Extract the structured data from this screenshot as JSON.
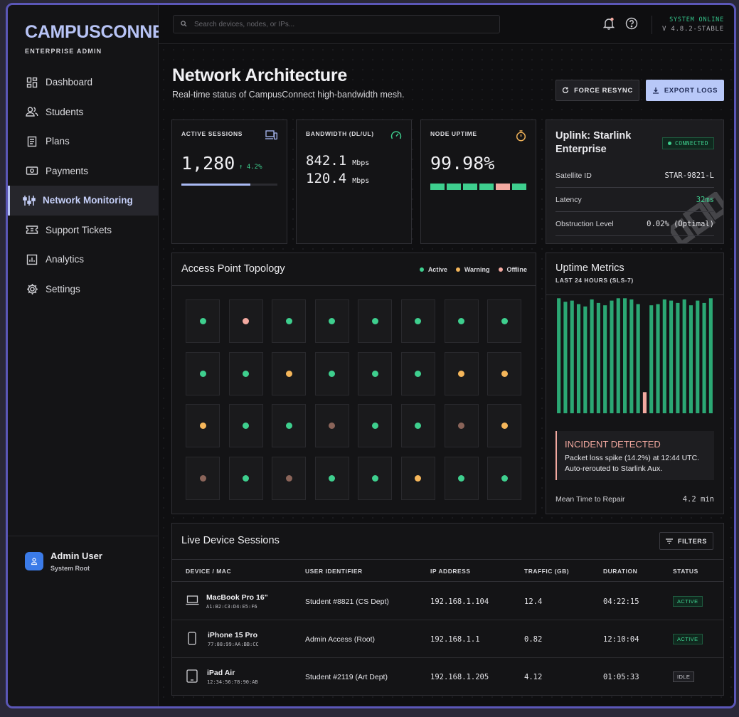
{
  "brand": {
    "title": "CAMPUSCONNECT",
    "subtitle": "ENTERPRISE ADMIN"
  },
  "sidebar": {
    "items": [
      {
        "label": "Dashboard",
        "icon": "dashboard-icon"
      },
      {
        "label": "Students",
        "icon": "users-icon"
      },
      {
        "label": "Plans",
        "icon": "plans-icon"
      },
      {
        "label": "Payments",
        "icon": "payments-icon"
      },
      {
        "label": "Network Monitoring",
        "icon": "network-icon",
        "active": true
      },
      {
        "label": "Support Tickets",
        "icon": "ticket-icon"
      },
      {
        "label": "Analytics",
        "icon": "analytics-icon"
      },
      {
        "label": "Settings",
        "icon": "gear-icon"
      }
    ],
    "user": {
      "name": "Admin User",
      "role": "System Root"
    }
  },
  "topbar": {
    "search_placeholder": "Search devices, nodes, or IPs...",
    "system_status": "SYSTEM ONLINE",
    "version": "V 4.8.2-STABLE"
  },
  "header": {
    "title": "Network Architecture",
    "subtitle": "Real-time status of CampusConnect high-bandwidth mesh.",
    "resync_label": "FORCE RESYNC",
    "export_label": "EXPORT LOGS"
  },
  "stats": {
    "sessions": {
      "label": "ACTIVE SESSIONS",
      "value": "1,280",
      "delta": "↑ 4.2%",
      "progress": 0.72
    },
    "bandwidth": {
      "label": "BANDWIDTH (DL/UL)",
      "dl": "842.1",
      "ul": "120.4",
      "unit": "Mbps"
    },
    "uptime": {
      "label": "NODE UPTIME",
      "value": "99.98%",
      "blocks": [
        "ok",
        "ok",
        "ok",
        "ok",
        "warn",
        "ok"
      ]
    }
  },
  "uplink": {
    "title": "Uplink: Starlink Enterprise",
    "status": "CONNECTED",
    "rows": [
      {
        "key": "Satellite ID",
        "value": "STAR-9821-L"
      },
      {
        "key": "Latency",
        "value": "32ms"
      },
      {
        "key": "Obstruction Level",
        "value": "0.02% (Optimal)"
      }
    ]
  },
  "topology": {
    "title": "Access Point Topology",
    "legend": {
      "active": "Active",
      "warning": "Warning",
      "offline": "Offline"
    },
    "nodes": [
      "active",
      "offline",
      "active",
      "active",
      "active",
      "active",
      "active",
      "active",
      "active",
      "active",
      "warning",
      "active",
      "active",
      "active",
      "warning",
      "warning",
      "warning",
      "active",
      "active",
      "down",
      "active",
      "active",
      "down",
      "warning",
      "down",
      "active",
      "down",
      "active",
      "active",
      "warning",
      "active",
      "active"
    ]
  },
  "uptime_metrics": {
    "title": "Uptime Metrics",
    "subtitle": "LAST 24 HOURS (SLS-7)",
    "bars": [
      0.98,
      0.95,
      0.96,
      0.93,
      0.91,
      0.97,
      0.94,
      0.92,
      0.96,
      0.98,
      0.98,
      0.97,
      0.93,
      0.18,
      0.92,
      0.93,
      0.97,
      0.96,
      0.94,
      0.97,
      0.92,
      0.96,
      0.94,
      0.98
    ],
    "incident_index": 13,
    "incident_title": "INCIDENT DETECTED",
    "incident_desc": "Packet loss spike (14.2%) at 12:44 UTC. Auto-rerouted to Starlink Aux.",
    "mttr_label": "Mean Time to Repair",
    "mttr_value": "4.2 min"
  },
  "sessions_table": {
    "title": "Live Device Sessions",
    "filters_label": "FILTERS",
    "columns": [
      "DEVICE / MAC",
      "USER IDENTIFIER",
      "IP ADDRESS",
      "TRAFFIC (GB)",
      "DURATION",
      "STATUS"
    ],
    "rows": [
      {
        "device": "MacBook Pro 16\"",
        "mac": "A1:B2:C3:D4:E5:F6",
        "icon": "laptop-icon",
        "user": "Student #8821 (CS Dept)",
        "ip": "192.168.1.104",
        "traffic": "12.4",
        "duration": "04:22:15",
        "status": "ACTIVE"
      },
      {
        "device": "iPhone 15 Pro",
        "mac": "77:88:99:AA:BB:CC",
        "icon": "phone-icon",
        "user": "Admin Access (Root)",
        "ip": "192.168.1.1",
        "traffic": "0.82",
        "duration": "12:10:04",
        "status": "ACTIVE"
      },
      {
        "device": "iPad Air",
        "mac": "12:34:56:78:90:AB",
        "icon": "tablet-icon",
        "user": "Student #2119 (Art Dept)",
        "ip": "192.168.1.205",
        "traffic": "4.12",
        "duration": "01:05:33",
        "status": "IDLE"
      }
    ]
  },
  "colors": {
    "accent": "#b7c3f5",
    "active": "#3ecf8e",
    "warning": "#f5b65a",
    "offline": "#f3a9a0",
    "down": "#8a6459"
  }
}
